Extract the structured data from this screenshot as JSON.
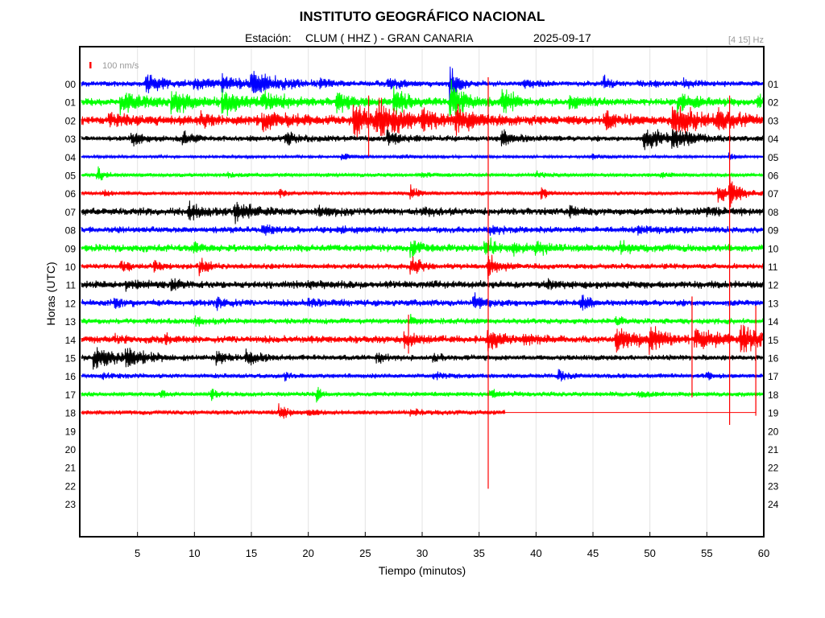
{
  "chart_data": {
    "type": "line",
    "title": "INSTITUTO GEOGRÁFICO NACIONAL",
    "subtitle": {
      "station_prefix": "Estación:",
      "station": "CLUM ( HHZ ) - GRAN CANARIA",
      "date": "2025-09-17"
    },
    "filter_label": "[4 15] Hz",
    "scale_label": "100 nm/s",
    "xlabel": "Tiempo (minutos)",
    "ylabel": "Horas (UTC)",
    "xlim": [
      0,
      60
    ],
    "xticks": [
      5,
      10,
      15,
      20,
      25,
      30,
      35,
      40,
      45,
      50,
      55,
      60
    ],
    "grid": true,
    "left_tick_labels": [
      "00",
      "01",
      "02",
      "03",
      "04",
      "05",
      "06",
      "07",
      "08",
      "09",
      "10",
      "11",
      "12",
      "13",
      "14",
      "15",
      "16",
      "17",
      "18",
      "19",
      "20",
      "21",
      "22",
      "23"
    ],
    "right_tick_labels": [
      "01",
      "02",
      "03",
      "04",
      "05",
      "06",
      "07",
      "08",
      "09",
      "10",
      "11",
      "12",
      "13",
      "14",
      "15",
      "16",
      "17",
      "18",
      "19",
      "20",
      "21",
      "22",
      "23",
      "24"
    ],
    "trace_color_cycle": [
      "#0000ff",
      "#00ff00",
      "#ff0000",
      "#000000"
    ],
    "series": [
      {
        "hour": 0,
        "x_end": 60,
        "noise": 3,
        "events": [
          {
            "t": 5.8,
            "a": 14,
            "d": 1.5
          },
          {
            "t": 10,
            "a": 8,
            "d": 1.5
          },
          {
            "t": 12.5,
            "a": 10,
            "d": 2
          },
          {
            "t": 15,
            "a": 16,
            "d": 2.5
          },
          {
            "t": 21,
            "a": 5,
            "d": 1
          },
          {
            "t": 27,
            "a": 6,
            "d": 1.5
          },
          {
            "t": 32.5,
            "a": 30,
            "d": 0.6
          },
          {
            "t": 39,
            "a": 6,
            "d": 1
          },
          {
            "t": 46,
            "a": 12,
            "d": 0.5
          },
          {
            "t": 49,
            "a": 5,
            "d": 1
          },
          {
            "t": 53,
            "a": 6,
            "d": 1
          }
        ]
      },
      {
        "hour": 1,
        "x_end": 60,
        "noise": 4,
        "events": [
          {
            "t": 3.5,
            "a": 16,
            "d": 2
          },
          {
            "t": 8,
            "a": 18,
            "d": 2
          },
          {
            "t": 12.5,
            "a": 16,
            "d": 1.5
          },
          {
            "t": 16,
            "a": 14,
            "d": 2
          },
          {
            "t": 22.5,
            "a": 14,
            "d": 1.5
          },
          {
            "t": 27.5,
            "a": 20,
            "d": 1.2
          },
          {
            "t": 32.5,
            "a": 26,
            "d": 1.2
          },
          {
            "t": 37,
            "a": 22,
            "d": 1
          },
          {
            "t": 43,
            "a": 10,
            "d": 1.5
          },
          {
            "t": 52.5,
            "a": 16,
            "d": 1.5
          },
          {
            "t": 59.5,
            "a": 12,
            "d": 0.5
          }
        ]
      },
      {
        "hour": 2,
        "x_end": 60,
        "noise": 5,
        "events": [
          {
            "t": 2.5,
            "a": 8,
            "d": 1.5
          },
          {
            "t": 10.5,
            "a": 10,
            "d": 1
          },
          {
            "t": 16,
            "a": 12,
            "d": 2
          },
          {
            "t": 24,
            "a": 24,
            "d": 1.5
          },
          {
            "t": 26,
            "a": 28,
            "d": 2
          },
          {
            "t": 30,
            "a": 14,
            "d": 1.5
          },
          {
            "t": 33,
            "a": 18,
            "d": 1.5
          },
          {
            "t": 46,
            "a": 12,
            "d": 1.5
          },
          {
            "t": 52,
            "a": 24,
            "d": 2
          },
          {
            "t": 56,
            "a": 14,
            "d": 1.5
          }
        ]
      },
      {
        "hour": 3,
        "x_end": 60,
        "noise": 3,
        "events": [
          {
            "t": 4.5,
            "a": 8,
            "d": 1.5
          },
          {
            "t": 9,
            "a": 12,
            "d": 0.8
          },
          {
            "t": 18,
            "a": 8,
            "d": 1.5
          },
          {
            "t": 27,
            "a": 10,
            "d": 1.5
          },
          {
            "t": 37,
            "a": 12,
            "d": 1.5
          },
          {
            "t": 49.5,
            "a": 16,
            "d": 2
          },
          {
            "t": 52,
            "a": 12,
            "d": 1.5
          }
        ]
      },
      {
        "hour": 4,
        "x_end": 60,
        "noise": 1.5,
        "events": [
          {
            "t": 23,
            "a": 4,
            "d": 1
          },
          {
            "t": 28,
            "a": 3,
            "d": 1
          },
          {
            "t": 45,
            "a": 4,
            "d": 1
          },
          {
            "t": 57,
            "a": 8,
            "d": 0.4
          }
        ]
      },
      {
        "hour": 5,
        "x_end": 60,
        "noise": 2,
        "events": [
          {
            "t": 1.5,
            "a": 12,
            "d": 0.5
          },
          {
            "t": 13,
            "a": 3,
            "d": 1
          },
          {
            "t": 30,
            "a": 3,
            "d": 1
          },
          {
            "t": 40,
            "a": 4,
            "d": 1
          },
          {
            "t": 51,
            "a": 3,
            "d": 1
          }
        ]
      },
      {
        "hour": 6,
        "x_end": 60,
        "noise": 2,
        "events": [
          {
            "t": 2,
            "a": 4,
            "d": 0.5
          },
          {
            "t": 17.5,
            "a": 6,
            "d": 0.4
          },
          {
            "t": 29,
            "a": 10,
            "d": 0.6
          },
          {
            "t": 40.5,
            "a": 10,
            "d": 0.6
          },
          {
            "t": 56,
            "a": 14,
            "d": 1
          },
          {
            "t": 57,
            "a": 22,
            "d": 0.8
          }
        ]
      },
      {
        "hour": 7,
        "x_end": 60,
        "noise": 4,
        "events": [
          {
            "t": 9.5,
            "a": 14,
            "d": 1.2
          },
          {
            "t": 13.5,
            "a": 12,
            "d": 1.5
          },
          {
            "t": 21,
            "a": 6,
            "d": 1
          },
          {
            "t": 30,
            "a": 6,
            "d": 1
          },
          {
            "t": 43,
            "a": 6,
            "d": 1
          },
          {
            "t": 55,
            "a": 6,
            "d": 1
          }
        ]
      },
      {
        "hour": 8,
        "x_end": 60,
        "noise": 3.5,
        "events": [
          {
            "t": 16,
            "a": 8,
            "d": 0.8
          },
          {
            "t": 23,
            "a": 6,
            "d": 0.5
          },
          {
            "t": 36,
            "a": 5,
            "d": 1
          },
          {
            "t": 49,
            "a": 5,
            "d": 1
          }
        ]
      },
      {
        "hour": 9,
        "x_end": 60,
        "noise": 4,
        "events": [
          {
            "t": 10,
            "a": 8,
            "d": 0.6
          },
          {
            "t": 29,
            "a": 12,
            "d": 0.8
          },
          {
            "t": 35.5,
            "a": 16,
            "d": 0.8
          },
          {
            "t": 38,
            "a": 8,
            "d": 1
          },
          {
            "t": 40,
            "a": 10,
            "d": 1
          },
          {
            "t": 47.5,
            "a": 12,
            "d": 0.6
          }
        ]
      },
      {
        "hour": 10,
        "x_end": 60,
        "noise": 3,
        "events": [
          {
            "t": 3.5,
            "a": 10,
            "d": 0.6
          },
          {
            "t": 6.5,
            "a": 12,
            "d": 0.5
          },
          {
            "t": 10.5,
            "a": 18,
            "d": 0.6
          },
          {
            "t": 29,
            "a": 16,
            "d": 0.8
          },
          {
            "t": 35.8,
            "a": 20,
            "d": 0.8
          }
        ]
      },
      {
        "hour": 11,
        "x_end": 60,
        "noise": 4,
        "events": [
          {
            "t": 4,
            "a": 6,
            "d": 1.5
          },
          {
            "t": 8,
            "a": 8,
            "d": 0.5
          },
          {
            "t": 20,
            "a": 4,
            "d": 1
          },
          {
            "t": 41,
            "a": 4,
            "d": 1
          }
        ]
      },
      {
        "hour": 12,
        "x_end": 60,
        "noise": 3.5,
        "events": [
          {
            "t": 3,
            "a": 6,
            "d": 1
          },
          {
            "t": 12,
            "a": 8,
            "d": 1
          },
          {
            "t": 20,
            "a": 6,
            "d": 1
          },
          {
            "t": 34.5,
            "a": 14,
            "d": 0.8
          },
          {
            "t": 44,
            "a": 12,
            "d": 0.8
          }
        ]
      },
      {
        "hour": 13,
        "x_end": 60,
        "noise": 3,
        "events": [
          {
            "t": 10,
            "a": 6,
            "d": 1
          },
          {
            "t": 29,
            "a": 6,
            "d": 1
          },
          {
            "t": 47,
            "a": 8,
            "d": 0.5
          }
        ]
      },
      {
        "hour": 14,
        "x_end": 60,
        "noise": 4,
        "events": [
          {
            "t": 3,
            "a": 6,
            "d": 0.5
          },
          {
            "t": 7.5,
            "a": 8,
            "d": 0.5
          },
          {
            "t": 28.5,
            "a": 10,
            "d": 1
          },
          {
            "t": 35.8,
            "a": 16,
            "d": 1
          },
          {
            "t": 39,
            "a": 8,
            "d": 1
          },
          {
            "t": 47,
            "a": 20,
            "d": 1.5
          },
          {
            "t": 50,
            "a": 14,
            "d": 1.5
          },
          {
            "t": 54,
            "a": 16,
            "d": 2
          },
          {
            "t": 58,
            "a": 22,
            "d": 1.5
          }
        ]
      },
      {
        "hour": 15,
        "x_end": 60,
        "noise": 3,
        "events": [
          {
            "t": 1.2,
            "a": 16,
            "d": 2
          },
          {
            "t": 4,
            "a": 12,
            "d": 1.5
          },
          {
            "t": 12,
            "a": 10,
            "d": 1
          },
          {
            "t": 14.5,
            "a": 12,
            "d": 1
          },
          {
            "t": 26,
            "a": 6,
            "d": 1
          },
          {
            "t": 31,
            "a": 5,
            "d": 1
          }
        ]
      },
      {
        "hour": 16,
        "x_end": 60,
        "noise": 2.5,
        "events": [
          {
            "t": 2,
            "a": 4,
            "d": 1
          },
          {
            "t": 18,
            "a": 6,
            "d": 0.5
          },
          {
            "t": 31,
            "a": 5,
            "d": 1
          },
          {
            "t": 42,
            "a": 8,
            "d": 0.8
          },
          {
            "t": 55,
            "a": 6,
            "d": 0.5
          }
        ]
      },
      {
        "hour": 17,
        "x_end": 60,
        "noise": 2.5,
        "events": [
          {
            "t": 7,
            "a": 6,
            "d": 0.5
          },
          {
            "t": 11.5,
            "a": 8,
            "d": 0.6
          },
          {
            "t": 20.8,
            "a": 12,
            "d": 0.4
          },
          {
            "t": 36,
            "a": 6,
            "d": 1
          },
          {
            "t": 49,
            "a": 5,
            "d": 1
          }
        ]
      },
      {
        "hour": 18,
        "x_end": 37.3,
        "noise": 2.5,
        "events": [
          {
            "t": 17.5,
            "a": 9,
            "d": 0.8
          },
          {
            "t": 20,
            "a": 5,
            "d": 0.6
          },
          {
            "t": 29,
            "a": 4,
            "d": 1
          }
        ]
      }
    ]
  }
}
